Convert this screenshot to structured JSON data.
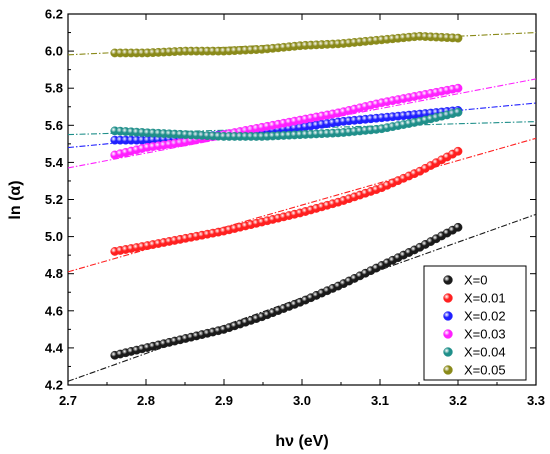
{
  "chart_data": {
    "type": "scatter",
    "xlabel": "hν (eV)",
    "ylabel": "ln (α)",
    "xlim": [
      2.7,
      3.3
    ],
    "ylim": [
      4.2,
      6.2
    ],
    "x_ticks": [
      "2.7",
      "2.8",
      "2.9",
      "3.0",
      "3.1",
      "3.2",
      "3.3"
    ],
    "y_ticks": [
      "4.2",
      "4.4",
      "4.6",
      "4.8",
      "5.0",
      "5.2",
      "5.4",
      "5.6",
      "5.8",
      "6.0",
      "6.2"
    ],
    "grid": false,
    "legend_position": "bottom-right",
    "series": [
      {
        "name": "X=0",
        "color": "#1a1a1a",
        "x": [
          2.76,
          2.8,
          2.85,
          2.9,
          2.95,
          3.0,
          3.05,
          3.1,
          3.15,
          3.2
        ],
        "y": [
          4.36,
          4.4,
          4.45,
          4.5,
          4.57,
          4.65,
          4.74,
          4.84,
          4.94,
          5.05
        ],
        "fit": {
          "x": [
            2.7,
            3.3
          ],
          "y": [
            4.22,
            5.12
          ]
        }
      },
      {
        "name": "X=0.01",
        "color": "#ff2020",
        "x": [
          2.76,
          2.8,
          2.85,
          2.9,
          2.95,
          3.0,
          3.05,
          3.1,
          3.15,
          3.2
        ],
        "y": [
          4.92,
          4.95,
          4.99,
          5.03,
          5.08,
          5.13,
          5.19,
          5.26,
          5.35,
          5.46
        ],
        "fit": {
          "x": [
            2.7,
            3.3
          ],
          "y": [
            4.81,
            5.53
          ]
        }
      },
      {
        "name": "X=0.02",
        "color": "#2020ff",
        "x": [
          2.76,
          2.8,
          2.85,
          2.9,
          2.95,
          3.0,
          3.05,
          3.1,
          3.15,
          3.2
        ],
        "y": [
          5.52,
          5.52,
          5.53,
          5.55,
          5.57,
          5.59,
          5.62,
          5.64,
          5.66,
          5.68
        ],
        "fit": {
          "x": [
            2.7,
            3.3
          ],
          "y": [
            5.48,
            5.72
          ]
        }
      },
      {
        "name": "X=0.03",
        "color": "#ff20ff",
        "x": [
          2.76,
          2.8,
          2.85,
          2.9,
          2.95,
          3.0,
          3.05,
          3.1,
          3.15,
          3.2
        ],
        "y": [
          5.44,
          5.48,
          5.51,
          5.55,
          5.59,
          5.63,
          5.67,
          5.72,
          5.76,
          5.8
        ],
        "fit": {
          "x": [
            2.7,
            3.3
          ],
          "y": [
            5.37,
            5.85
          ]
        }
      },
      {
        "name": "X=0.04",
        "color": "#1f8f8a",
        "x": [
          2.76,
          2.8,
          2.85,
          2.9,
          2.95,
          3.0,
          3.05,
          3.1,
          3.15,
          3.2
        ],
        "y": [
          5.57,
          5.56,
          5.55,
          5.54,
          5.54,
          5.55,
          5.56,
          5.58,
          5.62,
          5.67
        ],
        "fit": {
          "x": [
            2.7,
            3.3
          ],
          "y": [
            5.55,
            5.62
          ]
        }
      },
      {
        "name": "X=0.05",
        "color": "#8a8a1a",
        "x": [
          2.76,
          2.8,
          2.85,
          2.9,
          2.95,
          3.0,
          3.05,
          3.1,
          3.15,
          3.2
        ],
        "y": [
          5.99,
          5.99,
          6.0,
          6.0,
          6.01,
          6.03,
          6.04,
          6.06,
          6.08,
          6.07
        ],
        "fit": {
          "x": [
            2.7,
            3.3
          ],
          "y": [
            5.98,
            6.1
          ]
        }
      }
    ]
  }
}
